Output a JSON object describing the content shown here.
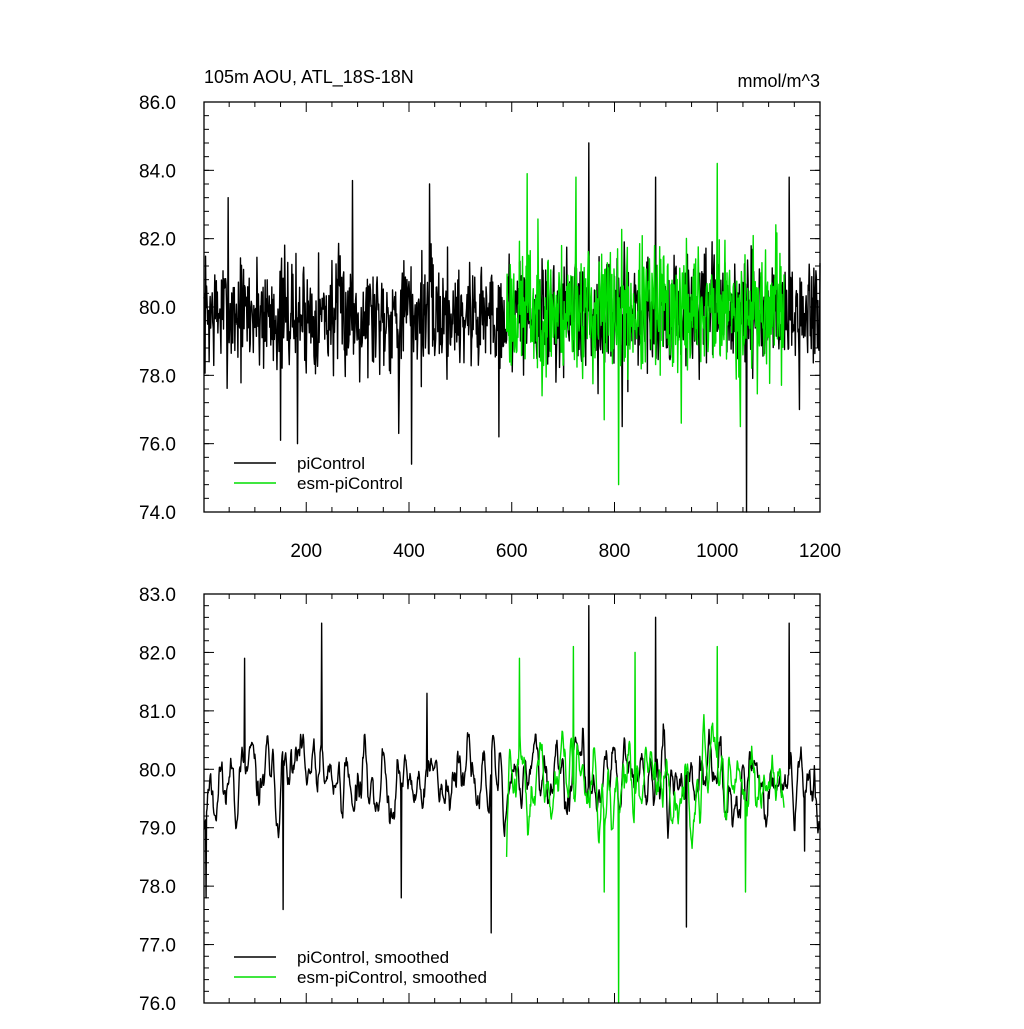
{
  "chart_data": [
    {
      "type": "line",
      "title": "105m AOU, ATL_18S-18N",
      "units": "mmol/m^3",
      "xlim": [
        1,
        1200
      ],
      "ylim": [
        74,
        86
      ],
      "xticks": [
        200,
        400,
        600,
        800,
        1000,
        1200
      ],
      "xtick_labels": [
        "200",
        "400",
        "600",
        "800",
        "1000",
        "1200"
      ],
      "yticks": [
        74,
        76,
        78,
        80,
        82,
        84,
        86
      ],
      "ytick_labels": [
        "74.0",
        "76.0",
        "78.0",
        "80.0",
        "82.0",
        "84.0",
        "86.0"
      ],
      "legend_position": "bottom-left",
      "series": [
        {
          "name": "piControl",
          "color": "#000000",
          "x_start": 1,
          "x_end": 1200,
          "mean": 79.8,
          "amplitude": 1.6,
          "seed": 7,
          "extrema": [
            [
              48,
              83.2
            ],
            [
              150,
              76.1
            ],
            [
              183,
              76.0
            ],
            [
              290,
              83.7
            ],
            [
              380,
              76.3
            ],
            [
              405,
              75.4
            ],
            [
              440,
              83.6
            ],
            [
              575,
              76.2
            ],
            [
              750,
              84.8
            ],
            [
              815,
              76.5
            ],
            [
              880,
              83.8
            ],
            [
              1057,
              74.0
            ],
            [
              1140,
              83.8
            ],
            [
              1160,
              77.0
            ]
          ]
        },
        {
          "name": "esm-piControl",
          "color": "#00dd00",
          "x_start": 590,
          "x_end": 1130,
          "mean": 79.9,
          "amplitude": 1.8,
          "seed": 23,
          "extrema": [
            [
              630,
              83.9
            ],
            [
              725,
              83.8
            ],
            [
              780,
              76.7
            ],
            [
              808,
              74.8
            ],
            [
              930,
              76.6
            ],
            [
              1000,
              84.2
            ],
            [
              1045,
              76.5
            ]
          ]
        }
      ]
    },
    {
      "type": "line",
      "title": "",
      "xlim": [
        1,
        1200
      ],
      "ylim": [
        76,
        83
      ],
      "xticks": [
        200,
        400,
        600,
        800,
        1000,
        1200
      ],
      "yticks": [
        76,
        77,
        78,
        79,
        80,
        81,
        82,
        83
      ],
      "ytick_labels": [
        "76.0",
        "77.0",
        "78.0",
        "79.0",
        "80.0",
        "81.0",
        "82.0",
        "83.0"
      ],
      "legend_position": "bottom-left",
      "series": [
        {
          "name": "piControl, smoothed",
          "color": "#000000",
          "x_start": 1,
          "x_end": 1200,
          "mean": 79.8,
          "amplitude": 0.9,
          "seed": 11,
          "extrema": [
            [
              5,
              77.8
            ],
            [
              80,
              81.9
            ],
            [
              155,
              77.6
            ],
            [
              230,
              82.5
            ],
            [
              385,
              77.8
            ],
            [
              435,
              81.3
            ],
            [
              560,
              77.2
            ],
            [
              750,
              82.8
            ],
            [
              880,
              82.6
            ],
            [
              940,
              77.3
            ],
            [
              1140,
              82.5
            ],
            [
              1170,
              78.6
            ]
          ]
        },
        {
          "name": "esm-piControl, smoothed",
          "color": "#00dd00",
          "x_start": 590,
          "x_end": 1130,
          "mean": 79.8,
          "amplitude": 1.0,
          "seed": 31,
          "extrema": [
            [
              590,
              78.5
            ],
            [
              615,
              81.9
            ],
            [
              720,
              82.1
            ],
            [
              780,
              77.9
            ],
            [
              808,
              76.0
            ],
            [
              840,
              82.0
            ],
            [
              1000,
              82.1
            ],
            [
              1055,
              77.9
            ]
          ]
        }
      ]
    }
  ]
}
